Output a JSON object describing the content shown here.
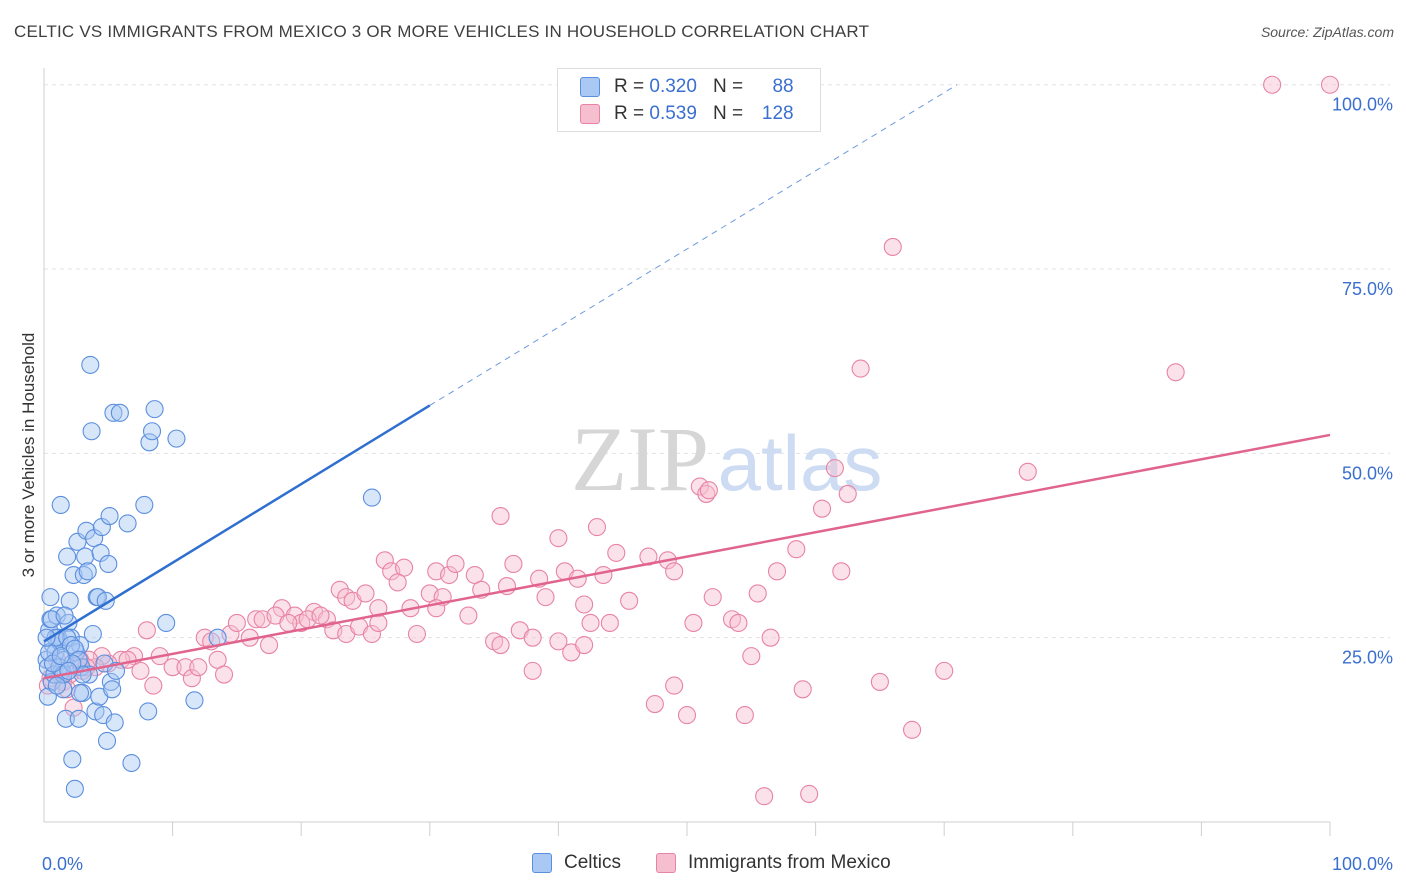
{
  "title": "CELTIC VS IMMIGRANTS FROM MEXICO 3 OR MORE VEHICLES IN HOUSEHOLD CORRELATION CHART",
  "source": "Source: ZipAtlas.com",
  "watermark": {
    "zip": "ZIP",
    "atlas": "atlas"
  },
  "legend_top": {
    "rows": [
      {
        "r_label": "R =",
        "r_value": "0.320",
        "n_label": "N =",
        "n_value": "88"
      },
      {
        "r_label": "R =",
        "r_value": "0.539",
        "n_label": "N =",
        "n_value": "128"
      }
    ]
  },
  "legend_bottom": [
    {
      "label": "Celtics"
    },
    {
      "label": "Immigrants from Mexico"
    }
  ],
  "colors": {
    "celtic_fill": "#a9c8f3",
    "celtic_stroke": "#5b8fde",
    "celtic_line": "#2f6fd0",
    "mexico_fill": "#f6bfd0",
    "mexico_stroke": "#e883a5",
    "mexico_line": "#e0648e",
    "tick_label": "#3a6fd0",
    "grid": "#e3e3e3"
  },
  "chart_data": {
    "type": "scatter",
    "title": "CELTIC VS IMMIGRANTS FROM MEXICO 3 OR MORE VEHICLES IN HOUSEHOLD CORRELATION CHART",
    "xlabel": "",
    "ylabel": "3 or more Vehicles in Household",
    "xlim": [
      0,
      100
    ],
    "ylim": [
      0,
      102
    ],
    "x_tick_labels": [
      {
        "value": 0,
        "label": "0.0%"
      },
      {
        "value": 100,
        "label": "100.0%"
      }
    ],
    "y_tick_labels": [
      {
        "value": 25,
        "label": "25.0%"
      },
      {
        "value": 50,
        "label": "50.0%"
      },
      {
        "value": 75,
        "label": "75.0%"
      },
      {
        "value": 100,
        "label": "100.0%"
      }
    ],
    "x_minor_ticks": [
      10,
      20,
      30,
      40,
      50,
      60,
      70,
      80,
      90,
      100
    ],
    "series": [
      {
        "name": "Celtics",
        "r": 0.32,
        "n": 88,
        "trend": {
          "x0": 0,
          "y0": 24.5,
          "x1": 30,
          "y1": 56.5,
          "dash_to_x": 71,
          "dash_to_y": 100
        },
        "points": [
          [
            0.2,
            22
          ],
          [
            0.3,
            21
          ],
          [
            0.4,
            26
          ],
          [
            0.5,
            27.5
          ],
          [
            0.6,
            19
          ],
          [
            0.7,
            24
          ],
          [
            0.8,
            20
          ],
          [
            0.9,
            23
          ],
          [
            1.0,
            28
          ],
          [
            1.1,
            25
          ],
          [
            0.5,
            30.5
          ],
          [
            1.2,
            24.5
          ],
          [
            1.3,
            43
          ],
          [
            1.4,
            20.5
          ],
          [
            1.5,
            18
          ],
          [
            1.6,
            22
          ],
          [
            1.7,
            14
          ],
          [
            1.8,
            36
          ],
          [
            1.9,
            27
          ],
          [
            2.0,
            30
          ],
          [
            2.1,
            25
          ],
          [
            2.2,
            8.5
          ],
          [
            2.3,
            33.5
          ],
          [
            2.4,
            4.5
          ],
          [
            2.5,
            23
          ],
          [
            2.6,
            38
          ],
          [
            2.7,
            14
          ],
          [
            2.8,
            24
          ],
          [
            2.9,
            21
          ],
          [
            3.0,
            17.5
          ],
          [
            3.1,
            33.5
          ],
          [
            3.2,
            36
          ],
          [
            3.3,
            39.5
          ],
          [
            3.4,
            34
          ],
          [
            3.5,
            20
          ],
          [
            3.6,
            62
          ],
          [
            3.7,
            53
          ],
          [
            3.8,
            25.5
          ],
          [
            3.9,
            38.5
          ],
          [
            4.0,
            15
          ],
          [
            4.1,
            30.5
          ],
          [
            4.2,
            30.5
          ],
          [
            4.3,
            17
          ],
          [
            4.4,
            36.5
          ],
          [
            4.5,
            40
          ],
          [
            4.6,
            14.5
          ],
          [
            4.7,
            21.5
          ],
          [
            4.8,
            30
          ],
          [
            4.9,
            11
          ],
          [
            5.0,
            35
          ],
          [
            5.1,
            41.5
          ],
          [
            5.2,
            19
          ],
          [
            5.3,
            18
          ],
          [
            5.4,
            55.5
          ],
          [
            5.5,
            13.5
          ],
          [
            5.6,
            20.5
          ],
          [
            5.9,
            55.5
          ],
          [
            6.5,
            40.5
          ],
          [
            6.8,
            8
          ],
          [
            7.8,
            43
          ],
          [
            8.1,
            15
          ],
          [
            8.2,
            51.5
          ],
          [
            8.4,
            53
          ],
          [
            8.6,
            56
          ],
          [
            9.5,
            27
          ],
          [
            10.3,
            52
          ],
          [
            11.7,
            16.5
          ],
          [
            13.5,
            25
          ],
          [
            25.5,
            44
          ],
          [
            0.3,
            17
          ],
          [
            0.6,
            27.5
          ],
          [
            0.9,
            25
          ],
          [
            1.2,
            21
          ],
          [
            1.5,
            20
          ],
          [
            1.8,
            25
          ],
          [
            2.1,
            24
          ],
          [
            2.4,
            23.5
          ],
          [
            2.7,
            22
          ],
          [
            3.0,
            20
          ],
          [
            0.4,
            23
          ],
          [
            1.0,
            18.5
          ],
          [
            1.6,
            28
          ],
          [
            2.2,
            21.5
          ],
          [
            2.8,
            17.5
          ],
          [
            0.7,
            21.5
          ],
          [
            1.3,
            22.5
          ],
          [
            1.9,
            20.5
          ],
          [
            0.2,
            25
          ]
        ]
      },
      {
        "name": "Immigrants from Mexico",
        "r": 0.539,
        "n": 128,
        "trend": {
          "x0": 0,
          "y0": 19.5,
          "x1": 100,
          "y1": 52.5
        },
        "points": [
          [
            95.5,
            100
          ],
          [
            100,
            100
          ],
          [
            66,
            78
          ],
          [
            63.5,
            61.5
          ],
          [
            88,
            61
          ],
          [
            61.5,
            48
          ],
          [
            76.5,
            47.5
          ],
          [
            51,
            45.5
          ],
          [
            51.5,
            44.5
          ],
          [
            51.7,
            45
          ],
          [
            62.5,
            44.5
          ],
          [
            60.5,
            42.5
          ],
          [
            35.5,
            41.5
          ],
          [
            40,
            38.5
          ],
          [
            43,
            40
          ],
          [
            58.5,
            37
          ],
          [
            26.5,
            35.5
          ],
          [
            27,
            34
          ],
          [
            28,
            34.5
          ],
          [
            30.5,
            34
          ],
          [
            31.5,
            33.5
          ],
          [
            32,
            35
          ],
          [
            33.5,
            33.5
          ],
          [
            36.5,
            35
          ],
          [
            38.5,
            33
          ],
          [
            40.5,
            34
          ],
          [
            41.5,
            33
          ],
          [
            43.5,
            33.5
          ],
          [
            44.5,
            36.5
          ],
          [
            47,
            36
          ],
          [
            48.5,
            35.5
          ],
          [
            49,
            34
          ],
          [
            57,
            34
          ],
          [
            62,
            34
          ],
          [
            23,
            31.5
          ],
          [
            23.5,
            30.5
          ],
          [
            24,
            30
          ],
          [
            25,
            31
          ],
          [
            26,
            29
          ],
          [
            27.5,
            32.5
          ],
          [
            28.5,
            29
          ],
          [
            30,
            31
          ],
          [
            31,
            30.5
          ],
          [
            34,
            31.5
          ],
          [
            36,
            32
          ],
          [
            39,
            30.5
          ],
          [
            42,
            29.5
          ],
          [
            45.5,
            30
          ],
          [
            52,
            30.5
          ],
          [
            55.5,
            31
          ],
          [
            18.5,
            29
          ],
          [
            19.5,
            28
          ],
          [
            20,
            27
          ],
          [
            21,
            28.5
          ],
          [
            22,
            27.5
          ],
          [
            22.5,
            26
          ],
          [
            23.5,
            25.5
          ],
          [
            24.5,
            26.5
          ],
          [
            25.5,
            25.5
          ],
          [
            26,
            27
          ],
          [
            29,
            25.5
          ],
          [
            30.5,
            29
          ],
          [
            33,
            28
          ],
          [
            37,
            26
          ],
          [
            38,
            25
          ],
          [
            40,
            24.5
          ],
          [
            42.5,
            27
          ],
          [
            44,
            27
          ],
          [
            50.5,
            27
          ],
          [
            53.5,
            27.5
          ],
          [
            54,
            27
          ],
          [
            12.5,
            25
          ],
          [
            13,
            24.5
          ],
          [
            14.5,
            25.5
          ],
          [
            15,
            27
          ],
          [
            16,
            25
          ],
          [
            16.5,
            27.5
          ],
          [
            17,
            27.5
          ],
          [
            18,
            28
          ],
          [
            19,
            27
          ],
          [
            20.5,
            27.5
          ],
          [
            8,
            26
          ],
          [
            9,
            22.5
          ],
          [
            10,
            21
          ],
          [
            11,
            21
          ],
          [
            11.5,
            19.5
          ],
          [
            12,
            21
          ],
          [
            13.5,
            22
          ],
          [
            14,
            20
          ],
          [
            7,
            22.5
          ],
          [
            6,
            22
          ],
          [
            5,
            21.5
          ],
          [
            4.5,
            22.5
          ],
          [
            4,
            21
          ],
          [
            3.5,
            22
          ],
          [
            3,
            20.5
          ],
          [
            2.5,
            21
          ],
          [
            2,
            20
          ],
          [
            1.5,
            19
          ],
          [
            1,
            22
          ],
          [
            0.5,
            19.5
          ],
          [
            1.8,
            18
          ],
          [
            2.3,
            15.5
          ],
          [
            2.8,
            22
          ],
          [
            3.3,
            21
          ],
          [
            6.5,
            22
          ],
          [
            7.5,
            20.5
          ],
          [
            8.5,
            18.5
          ],
          [
            17.5,
            24
          ],
          [
            21.5,
            28
          ],
          [
            35,
            24.5
          ],
          [
            35.5,
            24
          ],
          [
            38,
            20.5
          ],
          [
            41,
            23
          ],
          [
            42,
            24
          ],
          [
            47.5,
            16
          ],
          [
            50,
            14.5
          ],
          [
            49,
            18.5
          ],
          [
            54.5,
            14.5
          ],
          [
            55,
            22.5
          ],
          [
            59,
            18
          ],
          [
            65,
            19
          ],
          [
            67.5,
            12.5
          ],
          [
            70,
            20.5
          ],
          [
            56.5,
            25
          ],
          [
            56,
            3.5
          ],
          [
            59.5,
            3.8
          ],
          [
            0.3,
            18.5
          ]
        ]
      }
    ]
  }
}
